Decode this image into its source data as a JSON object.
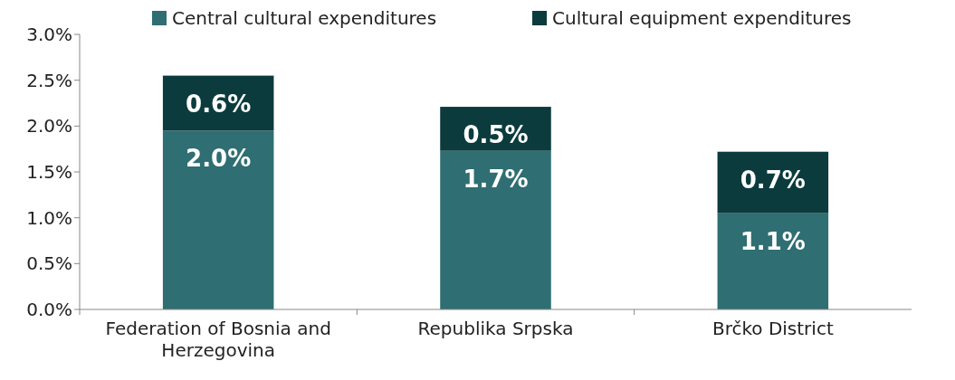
{
  "chart_data": {
    "type": "bar",
    "stacked": true,
    "categories": [
      "Federation of Bosnia and Herzegovina",
      "Republika Srpska",
      "Brčko District"
    ],
    "series": [
      {
        "name": "Central cultural expenditures",
        "color": "#2f6e72",
        "values": [
          1.95,
          1.73,
          1.05
        ],
        "value_labels": [
          "2.0%",
          "1.7%",
          "1.1%"
        ]
      },
      {
        "name": "Cultural equipment expenditures",
        "color": "#0b3b3d",
        "values": [
          0.6,
          0.48,
          0.67
        ],
        "value_labels": [
          "0.6%",
          "0.5%",
          "0.7%"
        ]
      }
    ],
    "ylim": [
      0,
      3
    ],
    "yticks": [
      {
        "value": 0,
        "label": "0.0%"
      },
      {
        "value": 0.5,
        "label": "0.5%"
      },
      {
        "value": 1,
        "label": "1.0%"
      },
      {
        "value": 1.5,
        "label": "1.5%"
      },
      {
        "value": 2,
        "label": "2.0%"
      },
      {
        "value": 2.5,
        "label": "2.5%"
      },
      {
        "value": 3,
        "label": "3.0%"
      }
    ],
    "grid": false,
    "legend": "top"
  }
}
